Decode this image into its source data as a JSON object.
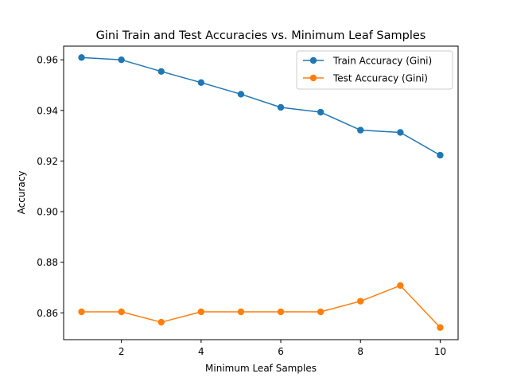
{
  "chart_data": {
    "type": "line",
    "title": "Gini Train and Test Accuracies vs. Minimum Leaf Samples",
    "xlabel": "Minimum Leaf Samples",
    "ylabel": "Accuracy",
    "x": [
      1,
      2,
      3,
      4,
      5,
      6,
      7,
      8,
      9,
      10
    ],
    "xlim": [
      0.55,
      10.45
    ],
    "ylim": [
      0.8494,
      0.9654
    ],
    "xticks": [
      2,
      4,
      6,
      8,
      10
    ],
    "yticks": [
      0.86,
      0.88,
      0.9,
      0.92,
      0.94,
      0.96
    ],
    "ytick_labels": [
      "0.86",
      "0.88",
      "0.90",
      "0.92",
      "0.94",
      "0.96"
    ],
    "grid": false,
    "legend_position": "top-right",
    "series": [
      {
        "name": "Train Accuracy (Gini)",
        "color": "#1f77b4",
        "marker": "circle",
        "values": [
          0.9609,
          0.96,
          0.9554,
          0.951,
          0.9464,
          0.9412,
          0.9393,
          0.9322,
          0.9313,
          0.9223
        ]
      },
      {
        "name": "Test Accuracy (Gini)",
        "color": "#ff7f0e",
        "marker": "circle",
        "values": [
          0.8604,
          0.8604,
          0.8563,
          0.8604,
          0.8604,
          0.8604,
          0.8604,
          0.8646,
          0.8708,
          0.8542
        ]
      }
    ]
  }
}
